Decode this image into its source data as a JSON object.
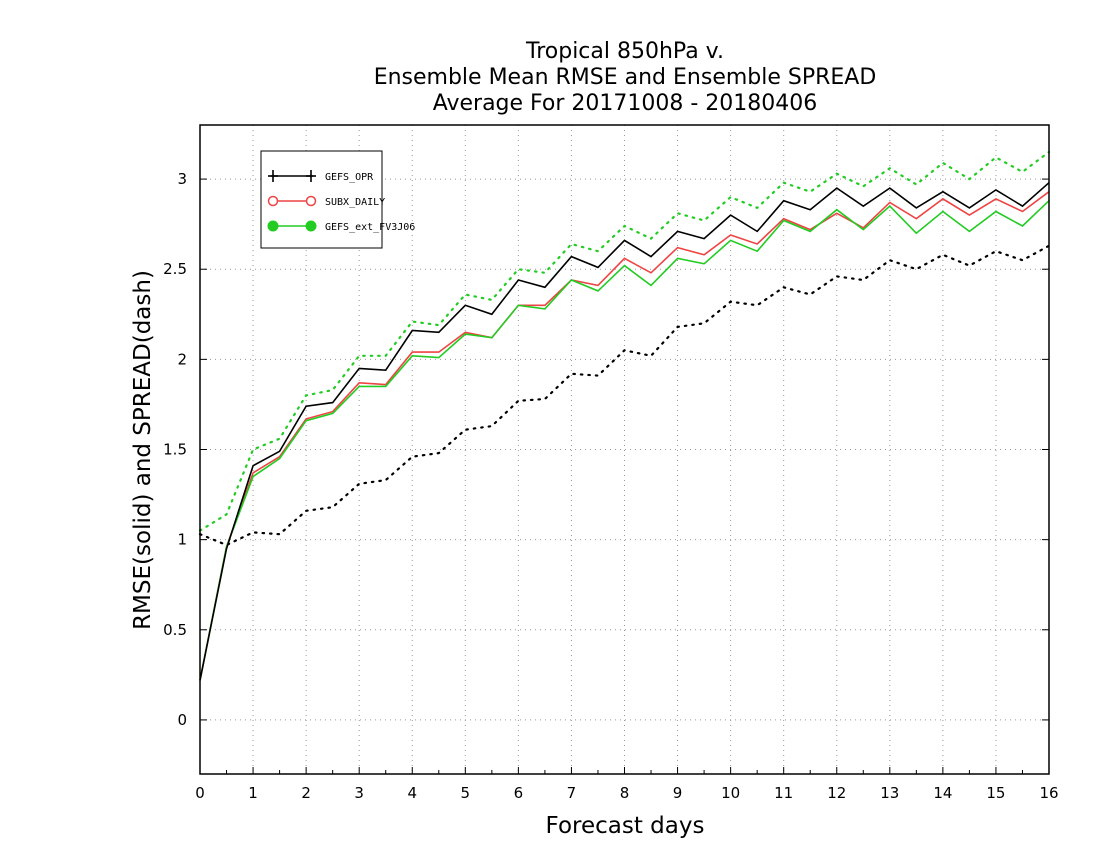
{
  "chart_data": {
    "type": "line",
    "title_lines": [
      "Tropical 850hPa v.",
      "Ensemble Mean RMSE and Ensemble SPREAD",
      "Average For 20171008 - 20180406"
    ],
    "xlabel": "Forecast days",
    "ylabel": "RMSE(solid) and SPREAD(dash)",
    "xlim": [
      0,
      16
    ],
    "ylim": [
      -0.3,
      3.3
    ],
    "xticks": [
      0,
      1,
      2,
      3,
      4,
      5,
      6,
      7,
      8,
      9,
      10,
      11,
      12,
      13,
      14,
      15,
      16
    ],
    "yticks": [
      0,
      0.5,
      1,
      1.5,
      2,
      2.5,
      3
    ],
    "grid": true,
    "legend_position": "top-left",
    "x": [
      0,
      0.5,
      1,
      1.5,
      2,
      2.5,
      3,
      3.5,
      4,
      4.5,
      5,
      5.5,
      6,
      6.5,
      7,
      7.5,
      8,
      8.5,
      9,
      9.5,
      10,
      10.5,
      11,
      11.5,
      12,
      12.5,
      13,
      13.5,
      14,
      14.5,
      15,
      15.5,
      16
    ],
    "series": [
      {
        "name": "GEFS_OPR",
        "color": "#000000",
        "marker": "plus",
        "rmse": [
          0.22,
          0.95,
          1.41,
          1.49,
          1.74,
          1.76,
          1.95,
          1.94,
          2.16,
          2.15,
          2.3,
          2.25,
          2.44,
          2.4,
          2.57,
          2.51,
          2.66,
          2.57,
          2.71,
          2.67,
          2.8,
          2.71,
          2.88,
          2.83,
          2.95,
          2.85,
          2.95,
          2.84,
          2.93,
          2.84,
          2.94,
          2.85,
          2.98
        ],
        "spread": [
          1.03,
          0.97,
          1.04,
          1.03,
          1.16,
          1.18,
          1.31,
          1.33,
          1.46,
          1.48,
          1.61,
          1.63,
          1.77,
          1.78,
          1.92,
          1.91,
          2.05,
          2.02,
          2.18,
          2.2,
          2.32,
          2.3,
          2.4,
          2.36,
          2.46,
          2.44,
          2.55,
          2.5,
          2.58,
          2.52,
          2.6,
          2.55,
          2.63
        ]
      },
      {
        "name": "SUBX_DAILY",
        "color": "#ee4444",
        "marker": "open-circle",
        "rmse": [
          0.22,
          0.96,
          1.37,
          1.46,
          1.67,
          1.71,
          1.87,
          1.86,
          2.04,
          2.04,
          2.15,
          2.12,
          2.3,
          2.3,
          2.44,
          2.41,
          2.56,
          2.48,
          2.62,
          2.58,
          2.69,
          2.64,
          2.78,
          2.72,
          2.81,
          2.73,
          2.87,
          2.78,
          2.89,
          2.8,
          2.89,
          2.82,
          2.93
        ]
      },
      {
        "name": "GEFS_ext_FV3J06",
        "color": "#22cc22",
        "marker": "filled-circle",
        "rmse": [
          0.22,
          0.96,
          1.35,
          1.45,
          1.66,
          1.7,
          1.85,
          1.85,
          2.02,
          2.01,
          2.14,
          2.12,
          2.3,
          2.28,
          2.44,
          2.38,
          2.52,
          2.41,
          2.56,
          2.53,
          2.66,
          2.6,
          2.77,
          2.71,
          2.83,
          2.72,
          2.85,
          2.7,
          2.82,
          2.71,
          2.82,
          2.74,
          2.88
        ],
        "spread": [
          1.05,
          1.14,
          1.5,
          1.56,
          1.8,
          1.83,
          2.02,
          2.02,
          2.21,
          2.19,
          2.36,
          2.33,
          2.5,
          2.48,
          2.64,
          2.6,
          2.74,
          2.67,
          2.81,
          2.77,
          2.9,
          2.84,
          2.98,
          2.93,
          3.03,
          2.96,
          3.06,
          2.97,
          3.09,
          3.0,
          3.12,
          3.04,
          3.15
        ]
      }
    ]
  }
}
